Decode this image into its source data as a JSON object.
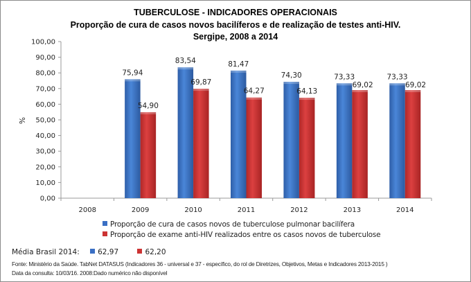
{
  "chart_data": {
    "type": "bar",
    "title": "TUBERCULOSE - INDICADORES OPERACIONAIS",
    "subtitle": "Proporção de cura de casos novos bacilíferos e de realização de testes anti-HIV.",
    "subtitle2": "Sergipe, 2008 a 2014",
    "xlabel": "",
    "ylabel": "%",
    "ylim": [
      0,
      100
    ],
    "yticks": [
      "0,00",
      "10,00",
      "20,00",
      "30,00",
      "40,00",
      "50,00",
      "60,00",
      "70,00",
      "80,00",
      "90,00",
      "100,00"
    ],
    "categories": [
      "2008",
      "2009",
      "2010",
      "2011",
      "2012",
      "2013",
      "2014"
    ],
    "series": [
      {
        "name": "Proporção de cura de casos novos de tuberculose pulmonar bacilífera",
        "color": "#3a6fc4",
        "values": [
          null,
          75.94,
          83.54,
          81.47,
          74.3,
          73.33,
          73.33
        ],
        "labels": [
          "",
          "75,94",
          "83,54",
          "81,47",
          "74,30",
          "73,33",
          "73,33"
        ]
      },
      {
        "name": "Proporção de exame anti-HIV realizados entre os casos novos de tuberculose",
        "color": "#cc3333",
        "values": [
          null,
          54.9,
          69.87,
          64.27,
          64.13,
          69.02,
          69.02
        ],
        "labels": [
          "",
          "54,90",
          "69,87",
          "64,27",
          "64,13",
          "69,02",
          "69,02"
        ]
      }
    ],
    "grid": false,
    "legend_position": "bottom"
  },
  "media_brasil": {
    "label": "Média Brasil 2014:",
    "blue_value": "62,97",
    "red_value": "62,20"
  },
  "footer": {
    "line1": "Fonte: Ministério da Saúde. TabNet DATASUS (Indicadores 36 - universal e 37 - específico, do rol de Diretrizes, Objetivos, Metas e Indicadores 2013-2015 )",
    "line2": "Data da consulta: 10/03/16. 2008:Dado numérico não disponível"
  }
}
